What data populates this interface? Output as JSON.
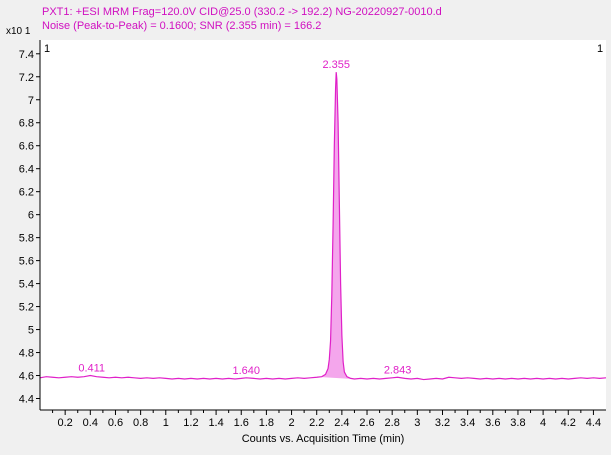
{
  "header": {
    "line1": "PXT1:  +ESI MRM  Frag=120.0V  CID@25.0 (330.2 -> 192.2) NG-20220927-0010.d",
    "line2": "Noise (Peak-to-Peak) = 0.1600; SNR (2.355 min) = 166.2"
  },
  "colors": {
    "trace": "#e020c8",
    "fill": "#f4a6ec",
    "header_text": "#d010c0",
    "axis": "#000000",
    "plot_bg": "#ffffff",
    "window_bg": "#f0f0f0"
  },
  "chart_data": {
    "type": "line",
    "title": "",
    "xlabel": "Counts vs. Acquisition Time (min)",
    "ylabel": "",
    "y_multiplier": "x10 1",
    "panel_marker": "1",
    "xlim": [
      0.0,
      4.5
    ],
    "ylim": [
      4.3,
      7.52
    ],
    "x_ticks": [
      0.2,
      0.4,
      0.6,
      0.8,
      1,
      1.2,
      1.4,
      1.6,
      1.8,
      2,
      2.2,
      2.4,
      2.6,
      2.8,
      3,
      3.2,
      3.4,
      3.6,
      3.8,
      4,
      4.2,
      4.4
    ],
    "x_tick_labels": [
      "0.2",
      "0.4",
      "0.6",
      "0.8",
      "1",
      "1.2",
      "1.4",
      "1.6",
      "1.8",
      "2",
      "2.2",
      "2.4",
      "2.6",
      "2.8",
      "3",
      "3.2",
      "3.4",
      "3.6",
      "3.8",
      "4",
      "4.2",
      "4.4"
    ],
    "y_ticks": [
      4.4,
      4.6,
      4.8,
      5,
      5.2,
      5.4,
      5.6,
      5.8,
      6,
      6.2,
      6.4,
      6.6,
      6.8,
      7,
      7.2,
      7.4
    ],
    "y_tick_labels": [
      "4.4",
      "4.6",
      "4.8",
      "5",
      "5.2",
      "5.4",
      "5.6",
      "5.8",
      "6",
      "6.2",
      "6.4",
      "6.6",
      "6.8",
      "7",
      "7.2",
      "7.4"
    ],
    "grid": false,
    "series": [
      {
        "x": [
          0.0,
          0.05,
          0.1,
          0.15,
          0.2,
          0.25,
          0.3,
          0.35,
          0.4,
          0.45,
          0.5,
          0.55,
          0.6,
          0.65,
          0.7,
          0.75,
          0.8,
          0.85,
          0.9,
          0.95,
          1.0,
          1.05,
          1.1,
          1.15,
          1.2,
          1.25,
          1.3,
          1.35,
          1.4,
          1.45,
          1.5,
          1.55,
          1.6,
          1.64,
          1.7,
          1.75,
          1.8,
          1.85,
          1.9,
          1.95,
          2.0,
          2.05,
          2.1,
          2.15,
          2.2,
          2.24,
          2.27,
          2.29,
          2.3,
          2.31,
          2.32,
          2.33,
          2.34,
          2.35,
          2.355,
          2.36,
          2.37,
          2.38,
          2.39,
          2.4,
          2.41,
          2.42,
          2.44,
          2.47,
          2.5,
          2.55,
          2.6,
          2.65,
          2.7,
          2.75,
          2.8,
          2.843,
          2.9,
          2.95,
          3.0,
          3.05,
          3.1,
          3.15,
          3.2,
          3.25,
          3.3,
          3.35,
          3.4,
          3.45,
          3.5,
          3.55,
          3.6,
          3.65,
          3.7,
          3.75,
          3.8,
          3.85,
          3.9,
          3.95,
          4.0,
          4.05,
          4.1,
          4.15,
          4.2,
          4.25,
          4.3,
          4.35,
          4.4,
          4.45,
          4.5
        ],
        "y": [
          4.58,
          4.59,
          4.585,
          4.58,
          4.585,
          4.59,
          4.585,
          4.59,
          4.6,
          4.59,
          4.585,
          4.58,
          4.585,
          4.58,
          4.585,
          4.58,
          4.575,
          4.58,
          4.575,
          4.58,
          4.575,
          4.57,
          4.575,
          4.57,
          4.575,
          4.57,
          4.575,
          4.57,
          4.575,
          4.57,
          4.575,
          4.57,
          4.575,
          4.58,
          4.575,
          4.57,
          4.575,
          4.57,
          4.575,
          4.57,
          4.575,
          4.58,
          4.575,
          4.58,
          4.585,
          4.59,
          4.61,
          4.66,
          4.74,
          4.9,
          5.3,
          5.9,
          6.6,
          7.1,
          7.24,
          7.18,
          6.8,
          6.1,
          5.4,
          4.95,
          4.72,
          4.63,
          4.59,
          4.575,
          4.57,
          4.575,
          4.57,
          4.575,
          4.57,
          4.575,
          4.58,
          4.585,
          4.575,
          4.57,
          4.575,
          4.565,
          4.57,
          4.575,
          4.57,
          4.585,
          4.58,
          4.575,
          4.58,
          4.575,
          4.57,
          4.575,
          4.57,
          4.575,
          4.57,
          4.575,
          4.57,
          4.575,
          4.57,
          4.575,
          4.57,
          4.575,
          4.57,
          4.575,
          4.57,
          4.575,
          4.58,
          4.575,
          4.58,
          4.575,
          4.58
        ]
      }
    ],
    "annotations": [
      {
        "label": "0.411",
        "x": 0.411,
        "y": 4.6
      },
      {
        "label": "1.640",
        "x": 1.64,
        "y": 4.58
      },
      {
        "label": "2.355",
        "x": 2.355,
        "y": 7.24
      },
      {
        "label": "2.843",
        "x": 2.843,
        "y": 4.585
      }
    ],
    "peak_fill_range": [
      2.24,
      2.47
    ]
  }
}
